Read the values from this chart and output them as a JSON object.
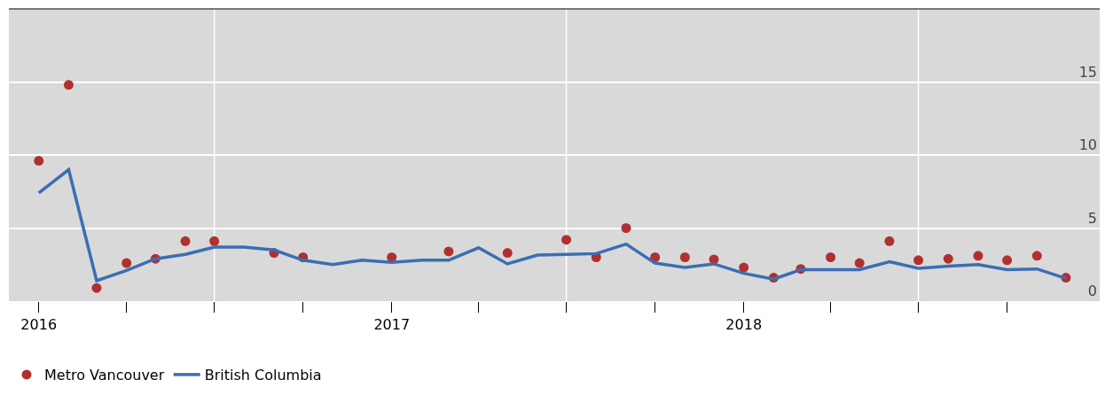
{
  "chart_data": {
    "type": "line",
    "x": [
      "2016-01",
      "2016-02",
      "2016-03",
      "2016-04",
      "2016-05",
      "2016-06",
      "2016-07",
      "2016-08",
      "2016-09",
      "2016-10",
      "2016-11",
      "2016-12",
      "2017-01",
      "2017-02",
      "2017-03",
      "2017-04",
      "2017-05",
      "2017-06",
      "2017-07",
      "2017-08",
      "2017-09",
      "2017-10",
      "2017-11",
      "2017-12",
      "2018-01",
      "2018-02",
      "2018-03",
      "2018-04",
      "2018-05",
      "2018-06",
      "2018-07",
      "2018-08",
      "2018-09",
      "2018-10",
      "2018-11",
      "2018-12"
    ],
    "series": [
      {
        "name": "Metro Vancouver",
        "type": "scatter",
        "marker": "circle",
        "color": "#b03030",
        "values": [
          9.6,
          14.8,
          0.9,
          2.6,
          2.9,
          4.1,
          4.1,
          null,
          3.3,
          3.0,
          null,
          null,
          3.0,
          null,
          3.4,
          null,
          3.3,
          null,
          4.2,
          3.0,
          5.0,
          3.0,
          3.0,
          2.85,
          2.3,
          1.6,
          2.2,
          3.0,
          2.6,
          4.1,
          2.8,
          2.9,
          3.1,
          2.8,
          3.1,
          1.6
        ]
      },
      {
        "name": "British Columbia",
        "color": "#3a6eb4",
        "values": [
          7.4,
          9.0,
          1.4,
          2.1,
          2.9,
          3.2,
          3.7,
          3.7,
          3.5,
          2.8,
          2.5,
          2.8,
          2.65,
          2.8,
          2.8,
          3.65,
          2.55,
          3.15,
          3.2,
          3.25,
          3.9,
          2.6,
          2.3,
          2.55,
          1.9,
          1.5,
          2.15,
          2.15,
          2.15,
          2.7,
          2.25,
          2.4,
          2.5,
          2.15,
          2.2,
          1.55
        ]
      }
    ],
    "xlim": [
      "2015-12-01",
      "2019-01-05"
    ],
    "xticks": [
      {
        "value": "2016-01",
        "label": "2016"
      },
      {
        "value": "2016-04",
        "label": null
      },
      {
        "value": "2016-07",
        "label": null
      },
      {
        "value": "2016-10",
        "label": null
      },
      {
        "value": "2017-01",
        "label": "2017"
      },
      {
        "value": "2017-04",
        "label": null
      },
      {
        "value": "2017-07",
        "label": null
      },
      {
        "value": "2017-10",
        "label": null
      },
      {
        "value": "2018-01",
        "label": "2018"
      },
      {
        "value": "2018-04",
        "label": null
      },
      {
        "value": "2018-07",
        "label": null
      },
      {
        "value": "2018-10",
        "label": null
      }
    ],
    "ylim": [
      0,
      20
    ],
    "yticks": [
      0,
      5,
      10,
      15
    ],
    "grid": "y",
    "legend": "bottom left",
    "ref_lines": [
      {
        "axis": "x",
        "value": "2016-07",
        "color": "#ffffff"
      },
      {
        "axis": "x",
        "value": "2017-07",
        "color": "#ffffff"
      },
      {
        "axis": "x",
        "value": "2018-07",
        "color": "#ffffff"
      }
    ]
  }
}
